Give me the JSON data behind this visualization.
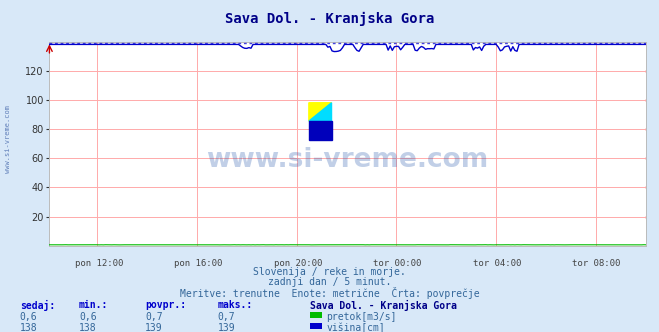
{
  "title": "Sava Dol. - Kranjska Gora",
  "background_color": "#d8e8f8",
  "plot_bg_color": "#ffffff",
  "grid_color": "#ffaaaa",
  "ylim": [
    0,
    140
  ],
  "yticks": [
    20,
    40,
    60,
    80,
    100,
    120
  ],
  "n_points": 288,
  "pretok_value": 0.6,
  "visina_value": 138,
  "visina_avg": 139,
  "pretok_color": "#00bb00",
  "visina_color": "#0000cc",
  "visina_dot_color": "#4444dd",
  "xlabel_ticks": [
    "pon 12:00",
    "pon 16:00",
    "pon 20:00",
    "tor 00:00",
    "tor 04:00",
    "tor 08:00"
  ],
  "xlabel_fracs": [
    0.0833,
    0.25,
    0.4167,
    0.5833,
    0.75,
    0.9167
  ],
  "subtitle1": "Slovenija / reke in morje.",
  "subtitle2": "zadnji dan / 5 minut.",
  "subtitle3": "Meritve: trenutne  Enote: metrične  Črta: povprečje",
  "table_header": [
    "sedaj:",
    "min.:",
    "povpr.:",
    "maks.:"
  ],
  "table_pretok": [
    "0,6",
    "0,6",
    "0,7",
    "0,7"
  ],
  "table_visina": [
    "138",
    "138",
    "139",
    "139"
  ],
  "legend_title": "Sava Dol. - Kranjska Gora",
  "legend_pretok": "pretok[m3/s]",
  "legend_visina": "višina[cm]",
  "watermark": "www.si-vreme.com",
  "watermark_color": "#2255aa",
  "side_label": "www.si-vreme.com",
  "arrow_color": "#cc0000",
  "title_color": "#000088",
  "label_color": "#336699",
  "header_color": "#0000cc"
}
